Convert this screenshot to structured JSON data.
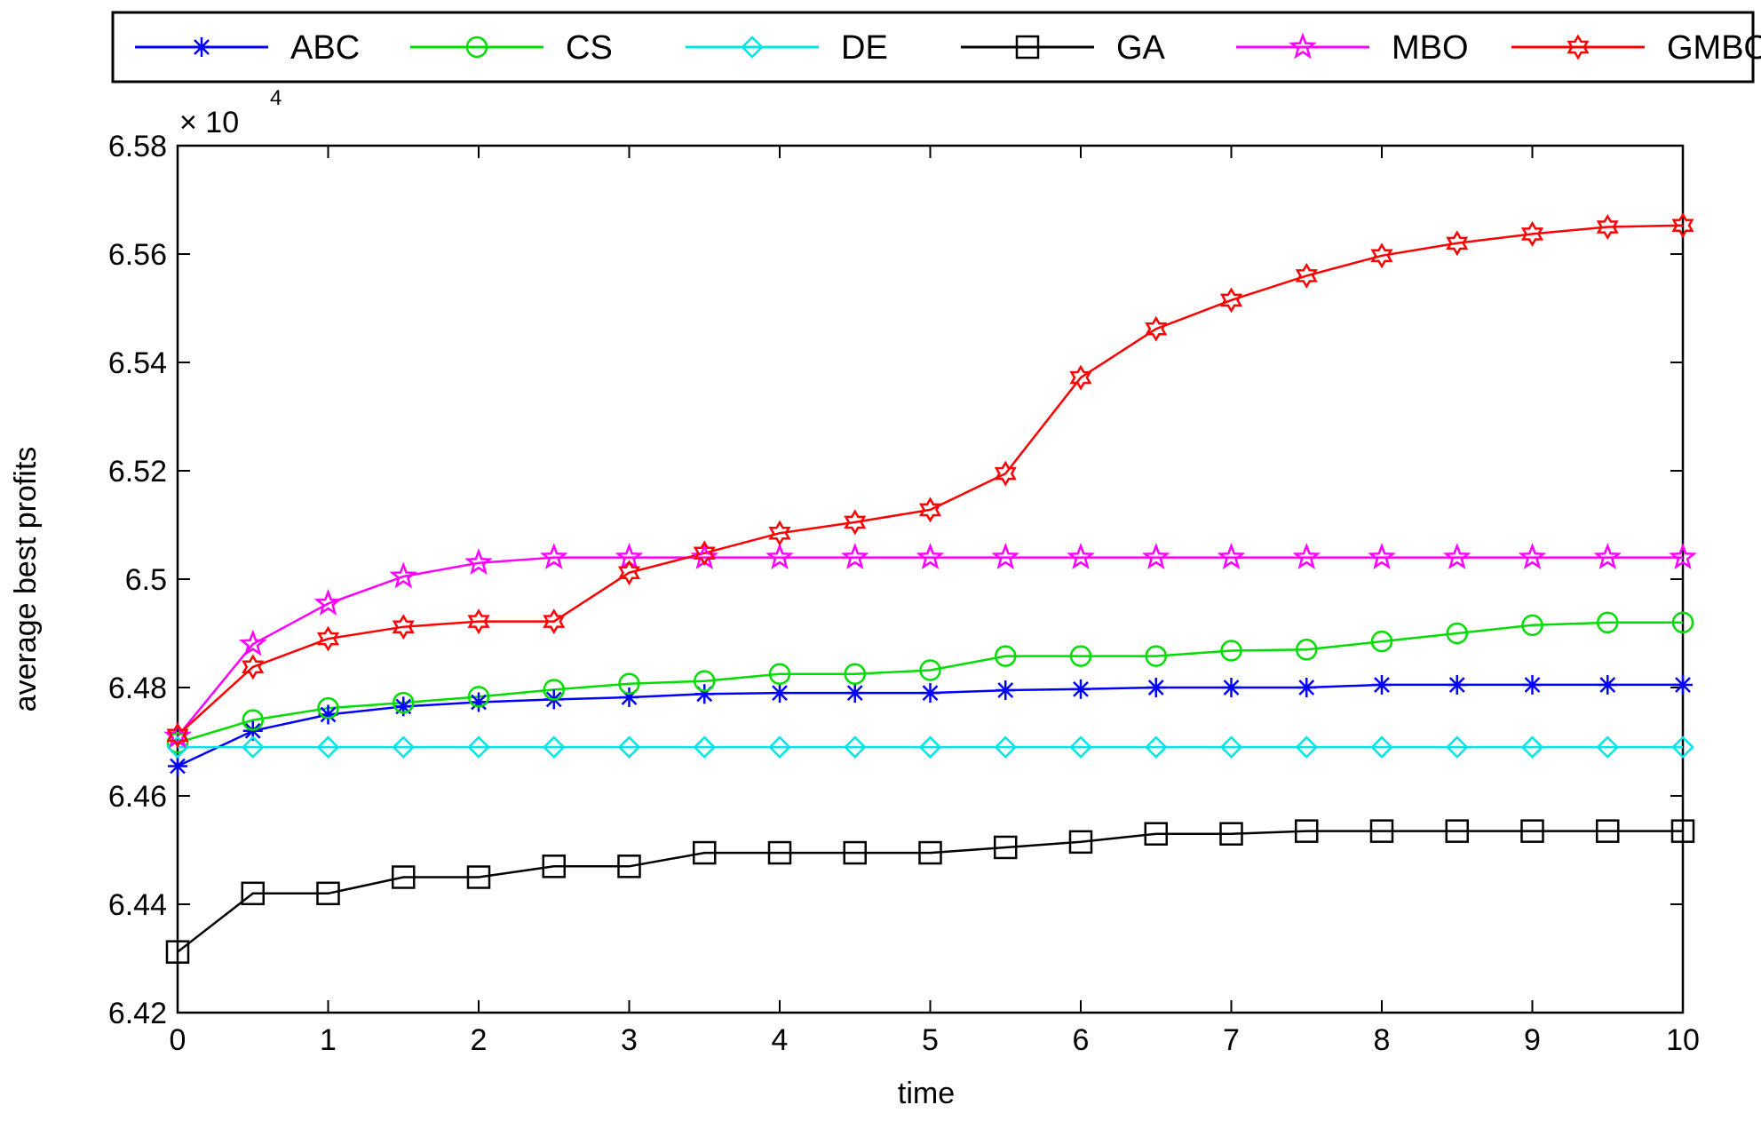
{
  "chart_data": {
    "type": "line",
    "title": "",
    "xlabel": "time",
    "ylabel": "average best profits",
    "multiplier_base": "× 10",
    "multiplier_exp": "4",
    "xlim": [
      0,
      10
    ],
    "ylim": [
      6.42,
      6.58
    ],
    "xticks": [
      0,
      1,
      2,
      3,
      4,
      5,
      6,
      7,
      8,
      9,
      10
    ],
    "xtick_labels": [
      "0",
      "1",
      "2",
      "3",
      "4",
      "5",
      "6",
      "7",
      "8",
      "9",
      "10"
    ],
    "yticks": [
      6.42,
      6.44,
      6.46,
      6.48,
      6.5,
      6.52,
      6.54,
      6.56,
      6.58
    ],
    "ytick_labels": [
      "6.42",
      "6.44",
      "6.46",
      "6.48",
      "6.5",
      "6.52",
      "6.54",
      "6.56",
      "6.58"
    ],
    "grid": false,
    "legend_position": "top",
    "x": [
      0,
      0.5,
      1,
      1.5,
      2,
      2.5,
      3,
      3.5,
      4,
      4.5,
      5,
      5.5,
      6,
      6.5,
      7,
      7.5,
      8,
      8.5,
      9,
      9.5,
      10
    ],
    "series": [
      {
        "name": "ABC",
        "color": "#0000ff",
        "marker": "asterisk",
        "values": [
          6.4655,
          6.472,
          6.475,
          6.4765,
          6.4773,
          6.4778,
          6.4782,
          6.4788,
          6.479,
          6.479,
          6.479,
          6.4795,
          6.4797,
          6.48,
          6.48,
          6.48,
          6.4805,
          6.4805,
          6.4805,
          6.4805,
          6.4805
        ]
      },
      {
        "name": "CS",
        "color": "#00dd00",
        "marker": "circle",
        "values": [
          6.4698,
          6.474,
          6.4762,
          6.4772,
          6.4783,
          6.4796,
          6.4807,
          6.4812,
          6.4825,
          6.4825,
          6.4832,
          6.4858,
          6.4858,
          6.4858,
          6.4868,
          6.487,
          6.4885,
          6.49,
          6.4915,
          6.492,
          6.492
        ]
      },
      {
        "name": "DE",
        "color": "#00e5e5",
        "marker": "diamond",
        "values": [
          6.469,
          6.469,
          6.469,
          6.469,
          6.469,
          6.469,
          6.469,
          6.469,
          6.469,
          6.469,
          6.469,
          6.469,
          6.469,
          6.469,
          6.469,
          6.469,
          6.469,
          6.469,
          6.469,
          6.469,
          6.469
        ]
      },
      {
        "name": "GA",
        "color": "#000000",
        "marker": "square",
        "values": [
          6.4312,
          6.442,
          6.442,
          6.445,
          6.445,
          6.447,
          6.447,
          6.4495,
          6.4495,
          6.4495,
          6.4495,
          6.4505,
          6.4515,
          6.453,
          6.453,
          6.4535,
          6.4535,
          6.4535,
          6.4535,
          6.4535,
          6.4535
        ]
      },
      {
        "name": "MBO",
        "color": "#ff00ff",
        "marker": "star",
        "values": [
          6.471,
          6.488,
          6.4955,
          6.5005,
          6.503,
          6.504,
          6.504,
          6.504,
          6.504,
          6.504,
          6.504,
          6.504,
          6.504,
          6.504,
          6.504,
          6.504,
          6.504,
          6.504,
          6.504,
          6.504,
          6.504
        ]
      },
      {
        "name": "GMBO",
        "color": "#ff0000",
        "marker": "hexagram",
        "values": [
          6.4712,
          6.4838,
          6.489,
          6.4912,
          6.4922,
          6.4922,
          6.5012,
          6.5048,
          6.5085,
          6.5105,
          6.5128,
          6.5195,
          6.5372,
          6.5462,
          6.5515,
          6.556,
          6.5597,
          6.562,
          6.5637,
          6.565,
          6.5653
        ]
      }
    ]
  }
}
